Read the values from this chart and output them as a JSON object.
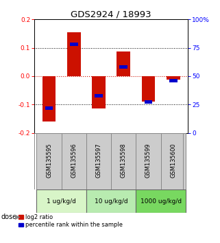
{
  "title": "GDS2924 / 18993",
  "samples": [
    "GSM135595",
    "GSM135596",
    "GSM135597",
    "GSM135598",
    "GSM135599",
    "GSM135600"
  ],
  "log2_ratios": [
    -0.16,
    0.155,
    -0.115,
    0.088,
    -0.09,
    -0.012
  ],
  "percentile_ranks": [
    22,
    78,
    33,
    58,
    27,
    46
  ],
  "dose_groups": [
    {
      "label": "1 ug/kg/d",
      "samples": [
        0,
        1
      ],
      "color": "#d8f5c8"
    },
    {
      "label": "10 ug/kg/d",
      "samples": [
        2,
        3
      ],
      "color": "#b8ebb0"
    },
    {
      "label": "1000 ug/kg/d",
      "samples": [
        4,
        5
      ],
      "color": "#78d860"
    }
  ],
  "bar_color_red": "#cc1100",
  "bar_color_blue": "#0000cc",
  "ylim_left": [
    -0.2,
    0.2
  ],
  "ylim_right": [
    0,
    100
  ],
  "yticks_left": [
    -0.2,
    -0.1,
    0,
    0.1,
    0.2
  ],
  "yticks_right": [
    0,
    25,
    50,
    75,
    100
  ],
  "dotted_lines_black": [
    -0.1,
    0.1
  ],
  "zero_line_color": "#cc1100",
  "bg_color": "#ffffff",
  "sample_bg": "#cccccc",
  "bar_width": 0.55,
  "blue_bar_width": 0.32,
  "blue_bar_height": 0.012,
  "legend_label_red": "log2 ratio",
  "legend_label_blue": "percentile rank within the sample",
  "dose_label": "dose"
}
